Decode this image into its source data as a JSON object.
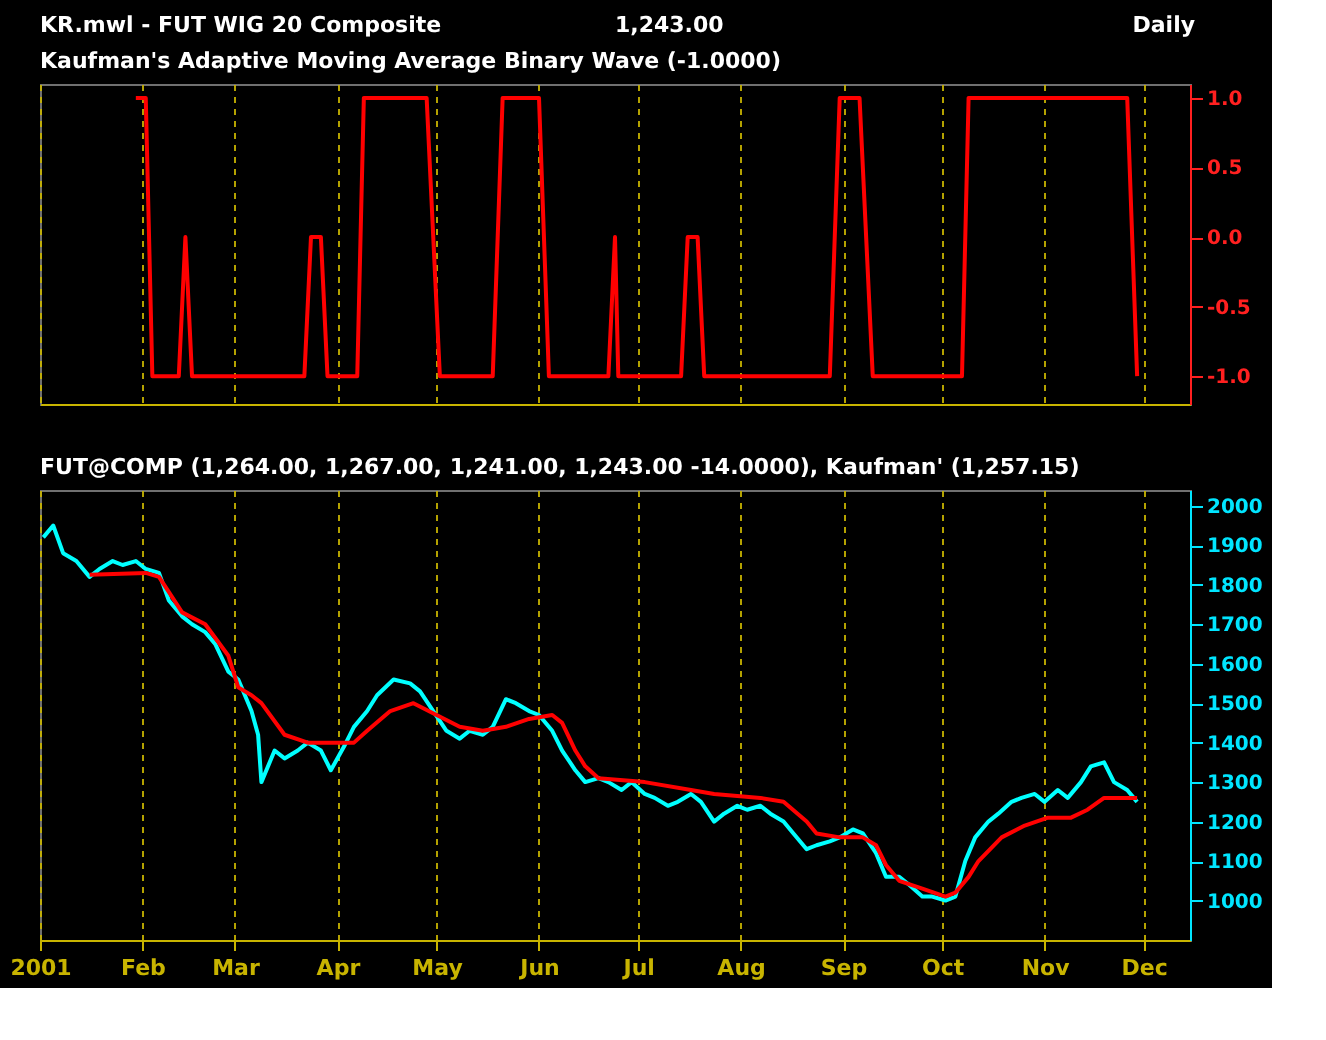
{
  "chart_data": [
    {
      "type": "line",
      "title": "KR.mwl - FUT WIG 20 Composite",
      "subtitle": "Kaufman's Adaptive Moving Average Binary Wave (-1.0000)",
      "annotations": [
        "1,243.00",
        "Daily"
      ],
      "series": [
        {
          "color": "#ff0000",
          "x": [
            "2001-01-30",
            "2001-02-02",
            "2001-02-04",
            "2001-02-12",
            "2001-02-14",
            "2001-02-16",
            "2001-03-22",
            "2001-03-24",
            "2001-03-27",
            "2001-03-29",
            "2001-04-07",
            "2001-04-09",
            "2001-04-28",
            "2001-04-30",
            "2001-05-02",
            "2001-05-18",
            "2001-05-21",
            "2001-06-01",
            "2001-06-04",
            "2001-06-22",
            "2001-06-24",
            "2001-06-25",
            "2001-07-14",
            "2001-07-16",
            "2001-07-19",
            "2001-07-21",
            "2001-08-28",
            "2001-08-31",
            "2001-09-06",
            "2001-09-10",
            "2001-10-07",
            "2001-10-09",
            "2001-11-26",
            "2001-11-29"
          ],
          "values": [
            1,
            1,
            -1,
            -1,
            0,
            -1,
            -1,
            0,
            0,
            -1,
            -1,
            1,
            1,
            0,
            -1,
            -1,
            1,
            1,
            -1,
            -1,
            0,
            -1,
            -1,
            0,
            0,
            -1,
            -1,
            1,
            1,
            -1,
            -1,
            1,
            1,
            -1
          ]
        }
      ],
      "xlim": [
        "2001-01-01",
        "2001-12-15"
      ],
      "xticks": [
        {
          "value": "2001-01-01",
          "label": null
        },
        {
          "value": "2001-02-01",
          "label": null
        },
        {
          "value": "2001-03-01",
          "label": null
        },
        {
          "value": "2001-04-01",
          "label": null
        },
        {
          "value": "2001-05-01",
          "label": null
        },
        {
          "value": "2001-06-01",
          "label": null
        },
        {
          "value": "2001-07-01",
          "label": null
        },
        {
          "value": "2001-08-01",
          "label": null
        },
        {
          "value": "2001-09-01",
          "label": null
        },
        {
          "value": "2001-10-01",
          "label": null
        },
        {
          "value": "2001-11-01",
          "label": null
        },
        {
          "value": "2001-12-01",
          "label": null
        }
      ],
      "ylim": [
        -1.2,
        1.1
      ],
      "yticks": [
        {
          "value": -1,
          "label": "-1.0"
        },
        {
          "value": -0.5,
          "label": "-0.5"
        },
        {
          "value": 0,
          "label": "0.0"
        },
        {
          "value": 0.5,
          "label": "0.5"
        },
        {
          "value": 1,
          "label": "1.0"
        }
      ],
      "tick_labels": "y",
      "grid": "x",
      "line_style": "solid"
    },
    {
      "type": "line",
      "title": "FUT@COMP (1,264.00, 1,267.00, 1,241.00, 1,243.00 -14.0000), Kaufman' (1,257.15)",
      "series": [
        {
          "color": "#00ffff",
          "x": [
            "2001-01-02",
            "2001-01-05",
            "2001-01-08",
            "2001-01-12",
            "2001-01-16",
            "2001-01-19",
            "2001-01-23",
            "2001-01-26",
            "2001-01-30",
            "2001-02-02",
            "2001-02-06",
            "2001-02-09",
            "2001-02-13",
            "2001-02-16",
            "2001-02-20",
            "2001-02-23",
            "2001-02-27",
            "2001-03-02",
            "2001-03-06",
            "2001-03-08",
            "2001-03-09",
            "2001-03-13",
            "2001-03-16",
            "2001-03-20",
            "2001-03-23",
            "2001-03-27",
            "2001-03-30",
            "2001-04-03",
            "2001-04-06",
            "2001-04-10",
            "2001-04-13",
            "2001-04-18",
            "2001-04-23",
            "2001-04-26",
            "2001-04-30",
            "2001-05-04",
            "2001-05-08",
            "2001-05-11",
            "2001-05-15",
            "2001-05-18",
            "2001-05-22",
            "2001-05-25",
            "2001-05-29",
            "2001-06-01",
            "2001-06-05",
            "2001-06-08",
            "2001-06-12",
            "2001-06-15",
            "2001-06-19",
            "2001-06-22",
            "2001-06-26",
            "2001-06-29",
            "2001-07-03",
            "2001-07-06",
            "2001-07-10",
            "2001-07-13",
            "2001-07-17",
            "2001-07-20",
            "2001-07-24",
            "2001-07-27",
            "2001-07-31",
            "2001-08-03",
            "2001-08-07",
            "2001-08-10",
            "2001-08-14",
            "2001-08-17",
            "2001-08-21",
            "2001-08-24",
            "2001-08-28",
            "2001-08-31",
            "2001-09-04",
            "2001-09-07",
            "2001-09-11",
            "2001-09-14",
            "2001-09-18",
            "2001-09-21",
            "2001-09-25",
            "2001-09-28",
            "2001-10-02",
            "2001-10-05",
            "2001-10-08",
            "2001-10-11",
            "2001-10-15",
            "2001-10-18",
            "2001-10-22",
            "2001-10-25",
            "2001-10-29",
            "2001-11-01",
            "2001-11-05",
            "2001-11-08",
            "2001-11-12",
            "2001-11-15",
            "2001-11-19",
            "2001-11-22",
            "2001-11-26",
            "2001-11-29"
          ],
          "values": [
            1920,
            1950,
            1880,
            1860,
            1820,
            1840,
            1860,
            1850,
            1860,
            1840,
            1830,
            1760,
            1720,
            1700,
            1680,
            1650,
            1580,
            1560,
            1480,
            1420,
            1300,
            1380,
            1360,
            1380,
            1400,
            1380,
            1330,
            1390,
            1440,
            1480,
            1520,
            1560,
            1550,
            1530,
            1480,
            1430,
            1410,
            1430,
            1420,
            1440,
            1510,
            1500,
            1480,
            1470,
            1430,
            1380,
            1330,
            1300,
            1310,
            1300,
            1280,
            1300,
            1270,
            1260,
            1240,
            1250,
            1270,
            1250,
            1200,
            1220,
            1240,
            1230,
            1240,
            1220,
            1200,
            1170,
            1130,
            1140,
            1150,
            1160,
            1180,
            1170,
            1120,
            1060,
            1060,
            1040,
            1010,
            1010,
            1000,
            1010,
            1100,
            1160,
            1200,
            1220,
            1250,
            1260,
            1270,
            1250,
            1280,
            1260,
            1300,
            1340,
            1350,
            1300,
            1280,
            1250
          ]
        },
        {
          "color": "#ff0000",
          "x": [
            "2001-01-16",
            "2001-02-02",
            "2001-02-06",
            "2001-02-13",
            "2001-02-20",
            "2001-02-27",
            "2001-03-02",
            "2001-03-06",
            "2001-03-09",
            "2001-03-16",
            "2001-03-23",
            "2001-03-30",
            "2001-04-06",
            "2001-04-10",
            "2001-04-17",
            "2001-04-24",
            "2001-05-01",
            "2001-05-08",
            "2001-05-15",
            "2001-05-22",
            "2001-05-29",
            "2001-06-05",
            "2001-06-08",
            "2001-06-12",
            "2001-06-15",
            "2001-06-19",
            "2001-07-03",
            "2001-07-17",
            "2001-07-24",
            "2001-08-07",
            "2001-08-14",
            "2001-08-21",
            "2001-08-24",
            "2001-08-31",
            "2001-09-07",
            "2001-09-11",
            "2001-09-14",
            "2001-09-18",
            "2001-09-25",
            "2001-10-02",
            "2001-10-05",
            "2001-10-09",
            "2001-10-12",
            "2001-10-19",
            "2001-10-26",
            "2001-11-02",
            "2001-11-09",
            "2001-11-14",
            "2001-11-19",
            "2001-11-29"
          ],
          "values": [
            1825,
            1830,
            1820,
            1730,
            1700,
            1620,
            1540,
            1520,
            1500,
            1420,
            1400,
            1400,
            1400,
            1430,
            1480,
            1500,
            1470,
            1440,
            1430,
            1440,
            1460,
            1470,
            1450,
            1380,
            1340,
            1310,
            1300,
            1280,
            1270,
            1260,
            1250,
            1200,
            1170,
            1160,
            1160,
            1140,
            1090,
            1050,
            1030,
            1010,
            1020,
            1060,
            1100,
            1160,
            1190,
            1210,
            1210,
            1230,
            1260,
            1260
          ]
        }
      ],
      "xlim": [
        "2001-01-01",
        "2001-12-15"
      ],
      "xticks": [
        {
          "value": "2001-01-01",
          "label": "2001"
        },
        {
          "value": "2001-02-01",
          "label": "Feb"
        },
        {
          "value": "2001-03-01",
          "label": "Mar"
        },
        {
          "value": "2001-04-01",
          "label": "Apr"
        },
        {
          "value": "2001-05-01",
          "label": "May"
        },
        {
          "value": "2001-06-01",
          "label": "Jun"
        },
        {
          "value": "2001-07-01",
          "label": "Jul"
        },
        {
          "value": "2001-08-01",
          "label": "Aug"
        },
        {
          "value": "2001-09-01",
          "label": "Sep"
        },
        {
          "value": "2001-10-01",
          "label": "Oct"
        },
        {
          "value": "2001-11-01",
          "label": "Nov"
        },
        {
          "value": "2001-12-01",
          "label": "Dec"
        }
      ],
      "ylim": [
        900,
        2040
      ],
      "yticks": [
        1000,
        1100,
        1200,
        1300,
        1400,
        1500,
        1600,
        1700,
        1800,
        1900,
        2000
      ],
      "grid": "x",
      "line_style": "solid"
    }
  ]
}
